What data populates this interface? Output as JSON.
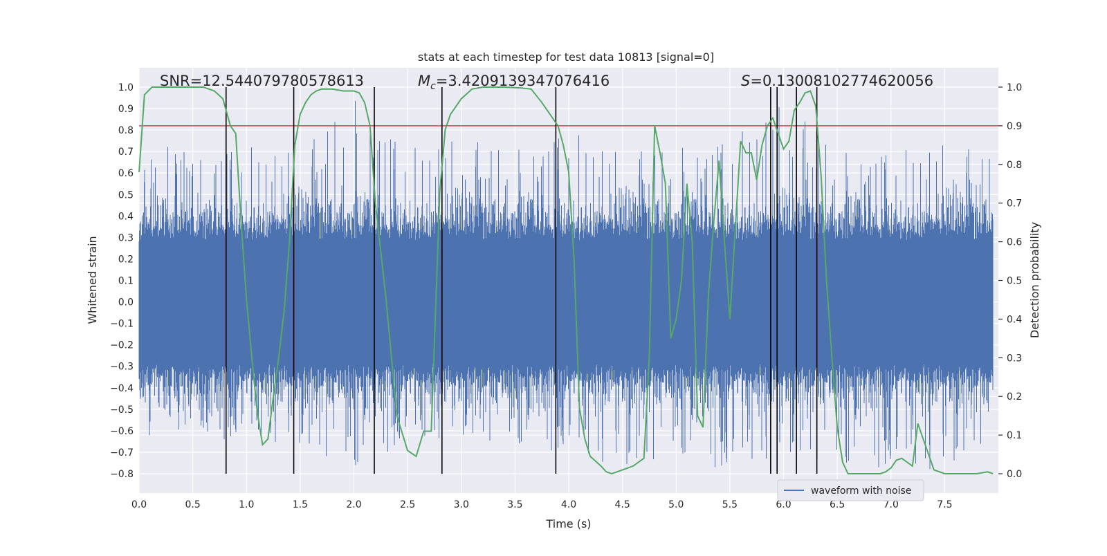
{
  "chart_data": {
    "type": "line",
    "title": "stats at each timestep for test data 10813 [signal=0]",
    "xlabel": "Time (s)",
    "ylabel": "Whitened strain",
    "y2label": "Detection probability",
    "xlim": [
      0.0,
      8.0
    ],
    "ylim": [
      -0.89,
      1.09
    ],
    "y2lim": [
      -0.05,
      1.05
    ],
    "xticks": [
      "0.0",
      "0.5",
      "1.0",
      "1.5",
      "2.0",
      "2.5",
      "3.0",
      "3.5",
      "4.0",
      "4.5",
      "5.0",
      "5.5",
      "6.0",
      "6.5",
      "7.0",
      "7.5"
    ],
    "xtick_values": [
      0.0,
      0.5,
      1.0,
      1.5,
      2.0,
      2.5,
      3.0,
      3.5,
      4.0,
      4.5,
      5.0,
      5.5,
      6.0,
      6.5,
      7.0,
      7.5
    ],
    "yticks": [
      "−0.8",
      "−0.7",
      "−0.6",
      "−0.5",
      "−0.4",
      "−0.3",
      "−0.2",
      "−0.1",
      "0.0",
      "0.1",
      "0.2",
      "0.3",
      "0.4",
      "0.5",
      "0.6",
      "0.7",
      "0.8",
      "0.9",
      "1.0"
    ],
    "ytick_values": [
      -0.8,
      -0.7,
      -0.6,
      -0.5,
      -0.4,
      -0.3,
      -0.2,
      -0.1,
      0.0,
      0.1,
      0.2,
      0.3,
      0.4,
      0.5,
      0.6,
      0.7,
      0.8,
      0.9,
      1.0
    ],
    "y2ticks": [
      "0.0",
      "0.1",
      "0.2",
      "0.3",
      "0.4",
      "0.5",
      "0.6",
      "0.7",
      "0.8",
      "0.9",
      "1.0"
    ],
    "y2tick_values": [
      0.0,
      0.1,
      0.2,
      0.3,
      0.4,
      0.5,
      0.6,
      0.7,
      0.8,
      0.9,
      1.0
    ],
    "grid": true,
    "legend": {
      "placement": "lower-right",
      "entries": [
        "waveform with noise"
      ]
    },
    "annotations": {
      "snr": "SNR=12.544079780578613",
      "mc_symbol": "M",
      "mc_sub": "c",
      "mc_value": "=3.4209139347076416",
      "s_symbol": "S",
      "s_value": "=0.13008102774620056"
    },
    "threshold_line": {
      "y2": 0.9,
      "color": "#c44e52"
    },
    "vertical_lines_x": [
      0.81,
      1.44,
      2.19,
      2.82,
      3.88,
      5.88,
      5.94,
      6.12,
      6.31
    ],
    "waveform": {
      "name": "waveform with noise",
      "color": "#4c72b0",
      "envelope": {
        "x": [
          0.0,
          0.5,
          1.0,
          1.5,
          2.0,
          2.5,
          3.0,
          3.5,
          4.0,
          4.5,
          5.0,
          5.5,
          6.0,
          6.5,
          7.0,
          7.5,
          7.95
        ],
        "max": [
          0.72,
          0.73,
          0.75,
          0.68,
          0.98,
          0.74,
          0.75,
          0.73,
          0.83,
          0.68,
          0.74,
          0.79,
          0.92,
          0.72,
          0.73,
          0.73,
          0.69
        ],
        "min": [
          -0.62,
          -0.63,
          -0.65,
          -0.68,
          -0.77,
          -0.66,
          -0.64,
          -0.66,
          -0.71,
          -0.79,
          -0.7,
          -0.8,
          -0.72,
          -0.75,
          -0.78,
          -0.8,
          -0.62
        ]
      }
    },
    "detection_probability": {
      "color": "#55a868",
      "x": [
        0.0,
        0.05,
        0.12,
        0.2,
        0.3,
        0.5,
        0.6,
        0.7,
        0.78,
        0.85,
        0.9,
        0.95,
        1.0,
        1.05,
        1.1,
        1.15,
        1.2,
        1.25,
        1.3,
        1.35,
        1.4,
        1.45,
        1.5,
        1.55,
        1.6,
        1.65,
        1.7,
        1.8,
        1.9,
        2.0,
        2.05,
        2.1,
        2.15,
        2.2,
        2.3,
        2.4,
        2.5,
        2.58,
        2.65,
        2.72,
        2.8,
        2.85,
        2.9,
        2.95,
        3.0,
        3.1,
        3.2,
        3.4,
        3.55,
        3.65,
        3.75,
        3.85,
        3.9,
        3.95,
        4.0,
        4.05,
        4.1,
        4.15,
        4.2,
        4.3,
        4.35,
        4.4,
        4.5,
        4.6,
        4.7,
        4.75,
        4.8,
        4.85,
        4.9,
        4.95,
        5.0,
        5.05,
        5.1,
        5.15,
        5.2,
        5.25,
        5.3,
        5.35,
        5.4,
        5.45,
        5.5,
        5.6,
        5.65,
        5.7,
        5.75,
        5.8,
        5.85,
        5.9,
        5.95,
        6.0,
        6.05,
        6.1,
        6.15,
        6.2,
        6.25,
        6.3,
        6.35,
        6.4,
        6.45,
        6.5,
        6.55,
        6.6,
        6.7,
        6.8,
        6.9,
        6.95,
        7.0,
        7.05,
        7.1,
        7.2,
        7.25,
        7.3,
        7.4,
        7.5,
        7.6,
        7.8,
        7.9,
        7.95
      ],
      "y": [
        0.78,
        0.98,
        1.0,
        1.0,
        1.0,
        1.0,
        1.0,
        0.99,
        0.97,
        0.9,
        0.88,
        0.65,
        0.45,
        0.3,
        0.16,
        0.075,
        0.09,
        0.2,
        0.3,
        0.42,
        0.6,
        0.85,
        0.93,
        0.96,
        0.98,
        0.99,
        0.995,
        0.995,
        0.99,
        0.99,
        0.985,
        0.96,
        0.9,
        0.7,
        0.45,
        0.15,
        0.06,
        0.045,
        0.11,
        0.11,
        0.73,
        0.89,
        0.93,
        0.95,
        0.97,
        0.995,
        1.0,
        1.0,
        0.998,
        0.995,
        0.96,
        0.92,
        0.9,
        0.85,
        0.78,
        0.55,
        0.17,
        0.09,
        0.045,
        0.02,
        0.005,
        0.0,
        0.01,
        0.02,
        0.04,
        0.3,
        0.9,
        0.83,
        0.75,
        0.35,
        0.4,
        0.5,
        0.75,
        0.6,
        0.15,
        0.12,
        0.46,
        0.65,
        0.81,
        0.6,
        0.4,
        0.86,
        0.83,
        0.83,
        0.76,
        0.85,
        0.9,
        0.92,
        0.88,
        0.84,
        0.86,
        0.94,
        0.96,
        0.985,
        0.99,
        0.95,
        0.77,
        0.5,
        0.3,
        0.12,
        0.03,
        0.0,
        0.0,
        0.0,
        0.0,
        0.005,
        0.015,
        0.035,
        0.04,
        0.02,
        0.13,
        0.09,
        0.01,
        0.0,
        0.0,
        0.0,
        0.005,
        0.0
      ]
    }
  }
}
